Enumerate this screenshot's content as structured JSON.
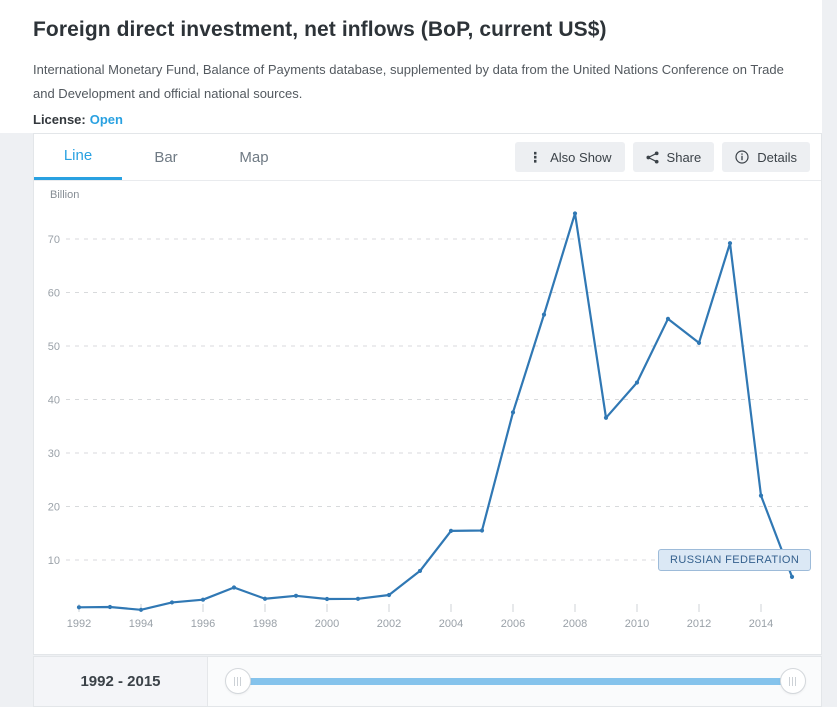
{
  "header": {
    "title": "Foreign direct investment, net inflows (BoP, current US$)",
    "source": "International Monetary Fund, Balance of Payments database, supplemented by data from the United Nations Conference on Trade and Development and official national sources.",
    "license_label": "License:",
    "license_value": "Open"
  },
  "tabs": [
    {
      "label": "Line",
      "active": true
    },
    {
      "label": "Bar",
      "active": false
    },
    {
      "label": "Map",
      "active": false
    }
  ],
  "toolbar": {
    "also_show_label": "Also Show",
    "share_label": "Share",
    "details_label": "Details"
  },
  "chart_data": {
    "type": "line",
    "unit_label": "Billion",
    "xlabel": "",
    "ylabel": "Billion",
    "x": [
      1992,
      1993,
      1994,
      1995,
      1996,
      1997,
      1998,
      1999,
      2000,
      2001,
      2002,
      2003,
      2004,
      2005,
      2006,
      2007,
      2008,
      2009,
      2010,
      2011,
      2012,
      2013,
      2014,
      2015
    ],
    "series": [
      {
        "name": "RUSSIAN FEDERATION",
        "color": "#3078b4",
        "values": [
          1.16,
          1.21,
          0.69,
          2.07,
          2.58,
          4.86,
          2.76,
          3.31,
          2.71,
          2.75,
          3.46,
          7.96,
          15.44,
          15.51,
          37.6,
          55.87,
          74.78,
          36.58,
          43.17,
          55.08,
          50.59,
          69.22,
          22.03,
          6.85
        ]
      }
    ],
    "x_ticks": [
      1992,
      1994,
      1996,
      1998,
      2000,
      2002,
      2004,
      2006,
      2008,
      2010,
      2012,
      2014
    ],
    "y_ticks": [
      10,
      20,
      30,
      40,
      50,
      60,
      70
    ],
    "ylim": [
      0,
      78
    ],
    "grid": "horizontal-dashed",
    "legend_position": "none",
    "annotation": {
      "label": "RUSSIAN FEDERATION",
      "x": 2015,
      "y": 6.85
    }
  },
  "slider": {
    "range_label": "1992 - 2015",
    "min": "1992",
    "max": "2015"
  },
  "colors": {
    "accent_blue": "#29a1e1",
    "line_color": "#3078b4",
    "slider_track": "#85c3ec",
    "tooltip_bg": "#dbe8f5",
    "tooltip_border": "#9dbbd9",
    "grid_line": "#d8dadc",
    "axis_text": "#9aa1a8"
  }
}
